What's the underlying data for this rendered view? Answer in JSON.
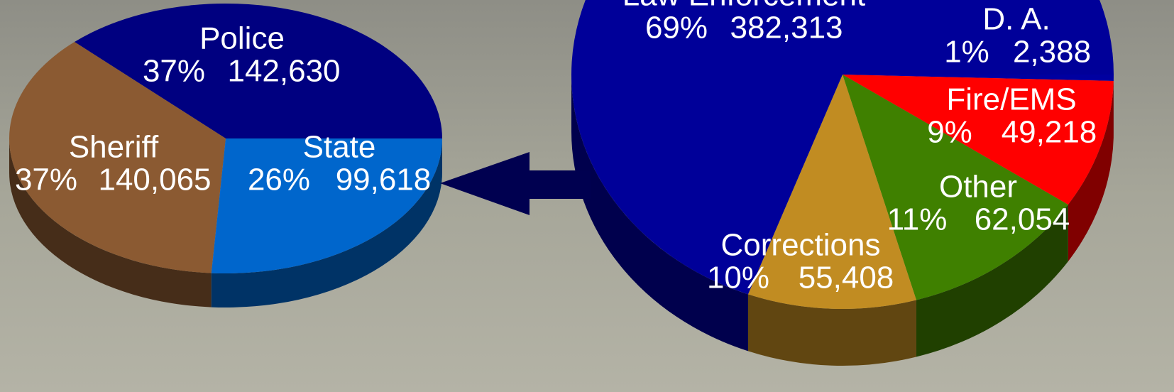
{
  "chart_data": [
    {
      "type": "pie",
      "categories": [
        "Police",
        "Sheriff",
        "State"
      ],
      "values": [
        142630,
        140065,
        99618
      ],
      "value_labels": [
        "142,630",
        "140,065",
        "99,618"
      ],
      "percent_labels": [
        "37%",
        "37%",
        "26%"
      ],
      "colors": [
        "#000080",
        "#8b5a32",
        "#0066cc"
      ]
    },
    {
      "type": "pie",
      "categories": [
        "D. A.",
        "Fire/EMS",
        "Other",
        "Corrections",
        "Law Enforcement"
      ],
      "values": [
        2388,
        49218,
        62054,
        55408,
        382313
      ],
      "value_labels": [
        "2,388",
        "49,218",
        "62,054",
        "55,408",
        "382,313"
      ],
      "percent_labels": [
        "1%",
        "9%",
        "11%",
        "10%",
        "69%"
      ],
      "colors": [
        "#0000a0",
        "#ff0000",
        "#3f8000",
        "#c18c22",
        "#000099"
      ]
    }
  ]
}
